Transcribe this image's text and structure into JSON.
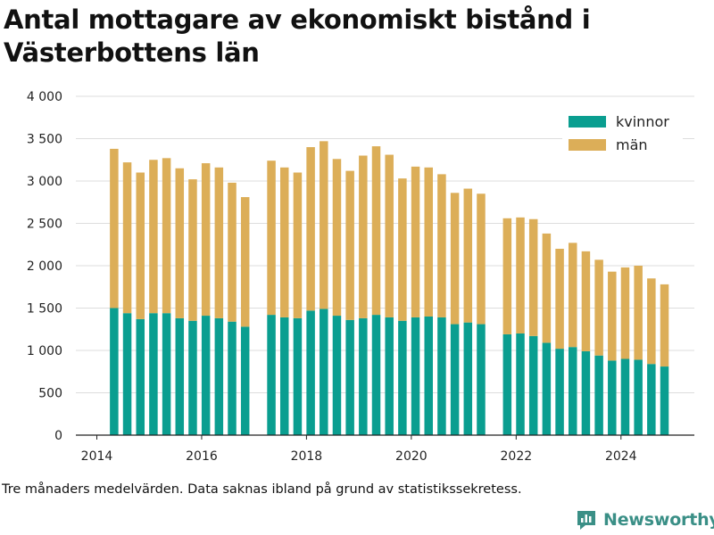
{
  "title": "Antal mottagare av ekonomiskt bistånd i Västerbottens län",
  "caption": "Tre månaders medelvärden. Data saknas ibland på grund av statistikssekretess.",
  "brand": {
    "name": "Newsworthy",
    "icon": "newsworthy-logo-icon"
  },
  "colors": {
    "kvinnor": "#0a9e90",
    "man": "#dcae58",
    "text": "#222222",
    "grid": "#dddddd"
  },
  "chart_data": {
    "type": "bar",
    "stacked": true,
    "title": "Antal mottagare av ekonomiskt bistånd i Västerbottens län",
    "xlabel": "",
    "ylabel": "",
    "xlim": [
      2013.6,
      2025.4
    ],
    "ylim": [
      0,
      4000
    ],
    "yticks": [
      0,
      500,
      1000,
      1500,
      2000,
      2500,
      3000,
      3500,
      4000
    ],
    "ytick_labels": [
      "0",
      "500",
      "1 000",
      "1 500",
      "2 000",
      "2 500",
      "3 000",
      "3 500",
      "4 000"
    ],
    "xticks": [
      2014,
      2016,
      2018,
      2020,
      2022,
      2024
    ],
    "xtick_labels": [
      "2014",
      "2016",
      "2018",
      "2020",
      "2022",
      "2024"
    ],
    "grid": true,
    "legend_position": "top-right",
    "x": [
      2014.33,
      2014.58,
      2014.83,
      2015.08,
      2015.33,
      2015.58,
      2015.83,
      2016.08,
      2016.33,
      2016.58,
      2016.83,
      2017.33,
      2017.58,
      2017.83,
      2018.08,
      2018.33,
      2018.58,
      2018.83,
      2019.08,
      2019.33,
      2019.58,
      2019.83,
      2020.08,
      2020.33,
      2020.58,
      2020.83,
      2021.08,
      2021.33,
      2021.83,
      2022.08,
      2022.33,
      2022.58,
      2022.83,
      2023.08,
      2023.33,
      2023.58,
      2023.83,
      2024.08,
      2024.33,
      2024.58,
      2024.83
    ],
    "series": [
      {
        "name": "kvinnor",
        "color": "#0a9e90",
        "values": [
          1500,
          1440,
          1370,
          1440,
          1440,
          1380,
          1350,
          1410,
          1380,
          1340,
          1280,
          1420,
          1390,
          1380,
          1470,
          1490,
          1410,
          1360,
          1380,
          1420,
          1390,
          1350,
          1390,
          1400,
          1390,
          1310,
          1330,
          1310,
          1190,
          1200,
          1170,
          1090,
          1020,
          1040,
          990,
          940,
          880,
          900,
          890,
          840,
          810
        ]
      },
      {
        "name": "män",
        "color": "#dcae58",
        "values": [
          1880,
          1780,
          1730,
          1810,
          1830,
          1770,
          1670,
          1800,
          1780,
          1640,
          1530,
          1820,
          1770,
          1720,
          1930,
          1980,
          1850,
          1760,
          1920,
          1990,
          1920,
          1680,
          1780,
          1760,
          1690,
          1550,
          1580,
          1540,
          1370,
          1370,
          1380,
          1290,
          1180,
          1230,
          1180,
          1130,
          1050,
          1080,
          1110,
          1010,
          970
        ]
      }
    ]
  }
}
